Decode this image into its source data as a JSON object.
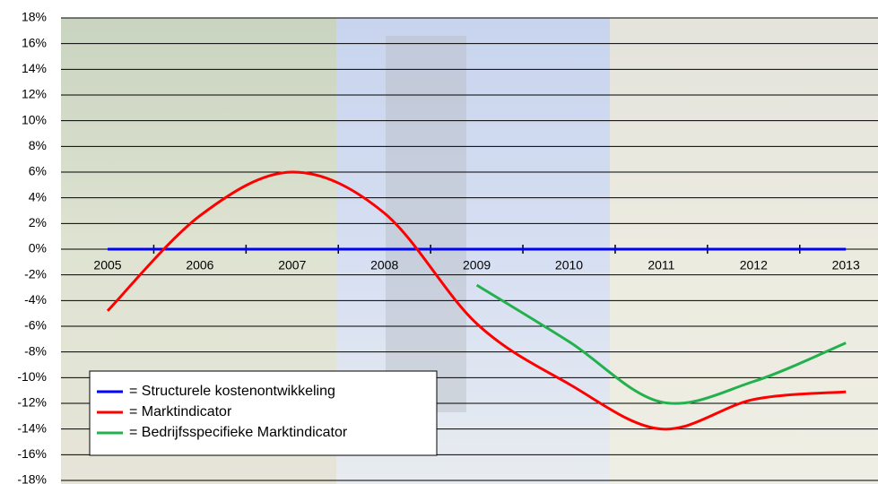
{
  "chart_data": {
    "type": "line",
    "categories": [
      "2005",
      "2006",
      "2007",
      "2008",
      "2009",
      "2010",
      "2011",
      "2012",
      "2013"
    ],
    "series": [
      {
        "name": "= Structurele kostenontwikkeling",
        "color": "#0000ff",
        "values": [
          0,
          0,
          0,
          0,
          0,
          0,
          0,
          0,
          0
        ]
      },
      {
        "name": "= Marktindicator",
        "color": "#ff0000",
        "values": [
          -4.8,
          2.6,
          6,
          2.8,
          -5.8,
          -10.5,
          -14,
          -11.7,
          -11.1
        ]
      },
      {
        "name": "= Bedrijfsspecifieke Marktindicator",
        "color": "#22b14c",
        "values": [
          null,
          null,
          null,
          null,
          -2.8,
          -7.2,
          -11.9,
          -10.3,
          -7.3
        ]
      }
    ],
    "ylim": [
      -18,
      18
    ],
    "yticks": [
      {
        "value": -18,
        "label": "-18%"
      },
      {
        "value": -16,
        "label": "-16%"
      },
      {
        "value": -14,
        "label": "-14%"
      },
      {
        "value": -12,
        "label": "-12%"
      },
      {
        "value": -10,
        "label": "-10%"
      },
      {
        "value": -8,
        "label": "-8%"
      },
      {
        "value": -6,
        "label": "-6%"
      },
      {
        "value": -4,
        "label": "-4%"
      },
      {
        "value": -2,
        "label": "-2%"
      },
      {
        "value": 0,
        "label": "0%"
      },
      {
        "value": 2,
        "label": "2%"
      },
      {
        "value": 4,
        "label": "4%"
      },
      {
        "value": 6,
        "label": "6%"
      },
      {
        "value": 8,
        "label": "8%"
      },
      {
        "value": 10,
        "label": "10%"
      },
      {
        "value": 12,
        "label": "12%"
      },
      {
        "value": 14,
        "label": "14%"
      },
      {
        "value": 16,
        "label": "16%"
      },
      {
        "value": 18,
        "label": "18%"
      }
    ],
    "grid": true,
    "legend": "bottom-left"
  }
}
